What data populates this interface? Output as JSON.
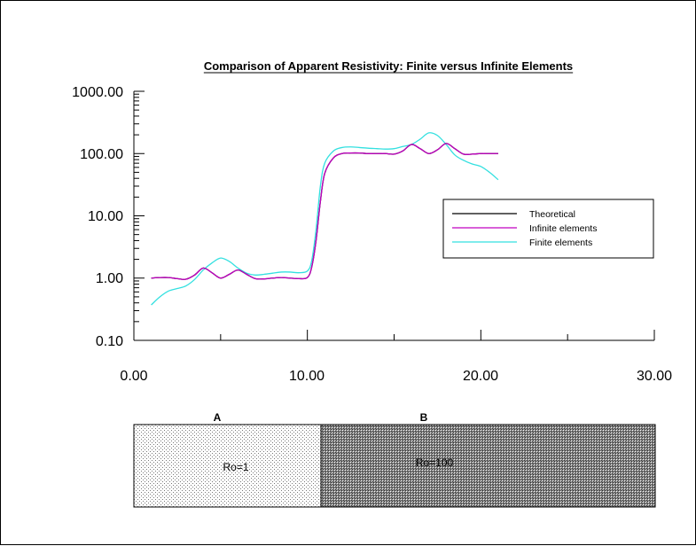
{
  "chart_data": {
    "type": "line",
    "title": "Comparison of Apparent Resistivity: Finite versus Infinite Elements",
    "xlabel": "",
    "ylabel": "",
    "xlim": [
      0,
      30
    ],
    "ylim": [
      0.1,
      1000
    ],
    "yscale": "log",
    "x_tick_labels": [
      "0.00",
      "10.00",
      "20.00",
      "30.00"
    ],
    "x_tick_values": [
      0,
      10,
      20,
      30
    ],
    "y_tick_labels": [
      "1000.00",
      "100.00",
      "10.00",
      "1.00",
      "0.10"
    ],
    "y_tick_values": [
      1000,
      100,
      10,
      1,
      0.1
    ],
    "grid": false,
    "legend_position": "right",
    "series": [
      {
        "name": "Theoretical",
        "color": "#000000",
        "x": [
          1.0,
          1.5,
          2.0,
          2.5,
          3.0,
          3.5,
          4.0,
          4.5,
          5.0,
          5.5,
          6.0,
          6.5,
          7.0,
          7.5,
          8.0,
          8.5,
          9.0,
          9.5,
          10.0,
          10.25,
          10.5,
          10.75,
          11.0,
          11.5,
          12.0,
          12.5,
          13.0,
          13.5,
          14.0,
          14.5,
          15.0,
          15.5,
          16.0,
          16.5,
          17.0,
          17.5,
          18.0,
          18.5,
          19.0,
          19.5,
          20.0,
          20.5,
          21.0
        ],
        "y": [
          1.0,
          1.02,
          1.02,
          0.98,
          0.96,
          1.12,
          1.45,
          1.22,
          1.0,
          1.15,
          1.35,
          1.15,
          0.98,
          0.97,
          1.0,
          1.02,
          1.0,
          0.98,
          1.02,
          1.5,
          4.0,
          17,
          48,
          85,
          100,
          102,
          102,
          100,
          100,
          100,
          98,
          110,
          140,
          120,
          100,
          115,
          145,
          120,
          98,
          98,
          100,
          100,
          100
        ]
      },
      {
        "name": "Infinite elements",
        "color": "#c000c0",
        "x": [
          1.0,
          1.5,
          2.0,
          2.5,
          3.0,
          3.5,
          4.0,
          4.5,
          5.0,
          5.5,
          6.0,
          6.5,
          7.0,
          7.5,
          8.0,
          8.5,
          9.0,
          9.5,
          10.0,
          10.25,
          10.5,
          10.75,
          11.0,
          11.5,
          12.0,
          12.5,
          13.0,
          13.5,
          14.0,
          14.5,
          15.0,
          15.5,
          16.0,
          16.5,
          17.0,
          17.5,
          18.0,
          18.5,
          19.0,
          19.5,
          20.0,
          20.5,
          21.0
        ],
        "y": [
          1.0,
          1.02,
          1.02,
          0.98,
          0.96,
          1.12,
          1.45,
          1.22,
          1.0,
          1.15,
          1.35,
          1.15,
          0.98,
          0.97,
          1.0,
          1.02,
          1.0,
          0.98,
          1.02,
          1.5,
          4.0,
          17,
          48,
          85,
          100,
          102,
          102,
          100,
          100,
          100,
          98,
          110,
          140,
          120,
          100,
          115,
          145,
          120,
          98,
          98,
          100,
          100,
          100
        ]
      },
      {
        "name": "Finite elements",
        "color": "#33e0e0",
        "x": [
          1.0,
          1.5,
          2.0,
          2.5,
          3.0,
          3.5,
          4.0,
          4.5,
          5.0,
          5.5,
          6.0,
          6.5,
          7.0,
          7.5,
          8.0,
          8.5,
          9.0,
          9.5,
          10.0,
          10.25,
          10.5,
          10.75,
          11.0,
          11.5,
          12.0,
          12.5,
          13.0,
          13.5,
          14.0,
          14.5,
          15.0,
          15.5,
          16.0,
          16.5,
          17.0,
          17.5,
          18.0,
          18.5,
          19.0,
          19.5,
          20.0,
          20.5,
          21.0
        ],
        "y": [
          0.37,
          0.5,
          0.62,
          0.68,
          0.75,
          0.95,
          1.35,
          1.75,
          2.1,
          1.85,
          1.45,
          1.2,
          1.12,
          1.15,
          1.2,
          1.25,
          1.25,
          1.22,
          1.3,
          1.9,
          6.0,
          30,
          70,
          110,
          125,
          128,
          125,
          122,
          120,
          118,
          120,
          130,
          140,
          170,
          215,
          195,
          140,
          95,
          78,
          68,
          62,
          50,
          38
        ]
      }
    ]
  },
  "regions": [
    {
      "letter": "A",
      "label": "Ro=1",
      "fill": "light-stipple"
    },
    {
      "letter": "B",
      "label": "Ro=100",
      "fill": "dark-stipple"
    }
  ]
}
